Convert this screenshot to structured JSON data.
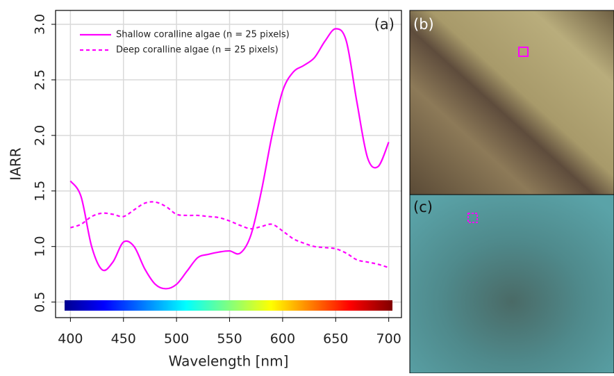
{
  "chart_data": {
    "type": "line",
    "panel_label": "(a)",
    "xlabel": "Wavelength [nm]",
    "ylabel": "IARR",
    "x": [
      400,
      410,
      420,
      430,
      440,
      450,
      460,
      470,
      480,
      490,
      500,
      510,
      520,
      530,
      540,
      550,
      560,
      570,
      580,
      590,
      600,
      610,
      620,
      630,
      640,
      650,
      660,
      670,
      680,
      690,
      700
    ],
    "series": [
      {
        "name": "Shallow coralline algae (n = 25 pixels)",
        "color": "#ff00ff",
        "dash": "solid",
        "values": [
          1.59,
          1.45,
          1.0,
          0.79,
          0.86,
          1.04,
          1.0,
          0.8,
          0.66,
          0.62,
          0.66,
          0.78,
          0.9,
          0.93,
          0.95,
          0.96,
          0.94,
          1.1,
          1.5,
          2.0,
          2.4,
          2.57,
          2.63,
          2.7,
          2.85,
          2.96,
          2.85,
          2.3,
          1.8,
          1.72,
          1.94
        ]
      },
      {
        "name": "Deep coralline algae (n = 25 pixels)",
        "color": "#ff00ff",
        "dash": "dashed",
        "values": [
          1.17,
          1.2,
          1.27,
          1.3,
          1.29,
          1.27,
          1.33,
          1.39,
          1.4,
          1.36,
          1.29,
          1.28,
          1.28,
          1.27,
          1.26,
          1.23,
          1.19,
          1.16,
          1.18,
          1.2,
          1.14,
          1.07,
          1.03,
          1.0,
          0.99,
          0.98,
          0.94,
          0.88,
          0.86,
          0.84,
          0.81
        ]
      }
    ],
    "xlim": [
      386,
      712
    ],
    "ylim": [
      0.36,
      3.125
    ],
    "xticks": [
      400,
      450,
      500,
      550,
      600,
      650,
      700
    ],
    "yticks": [
      0.5,
      {
        "value": 1,
        "label": "1.0"
      },
      1.5,
      {
        "value": 2,
        "label": "2.0"
      },
      2.5,
      {
        "value": 3,
        "label": "3.0"
      }
    ],
    "grid": true,
    "legend": "upper left"
  },
  "images": [
    {
      "label": "(b)"
    },
    {
      "label": "(c)"
    }
  ]
}
